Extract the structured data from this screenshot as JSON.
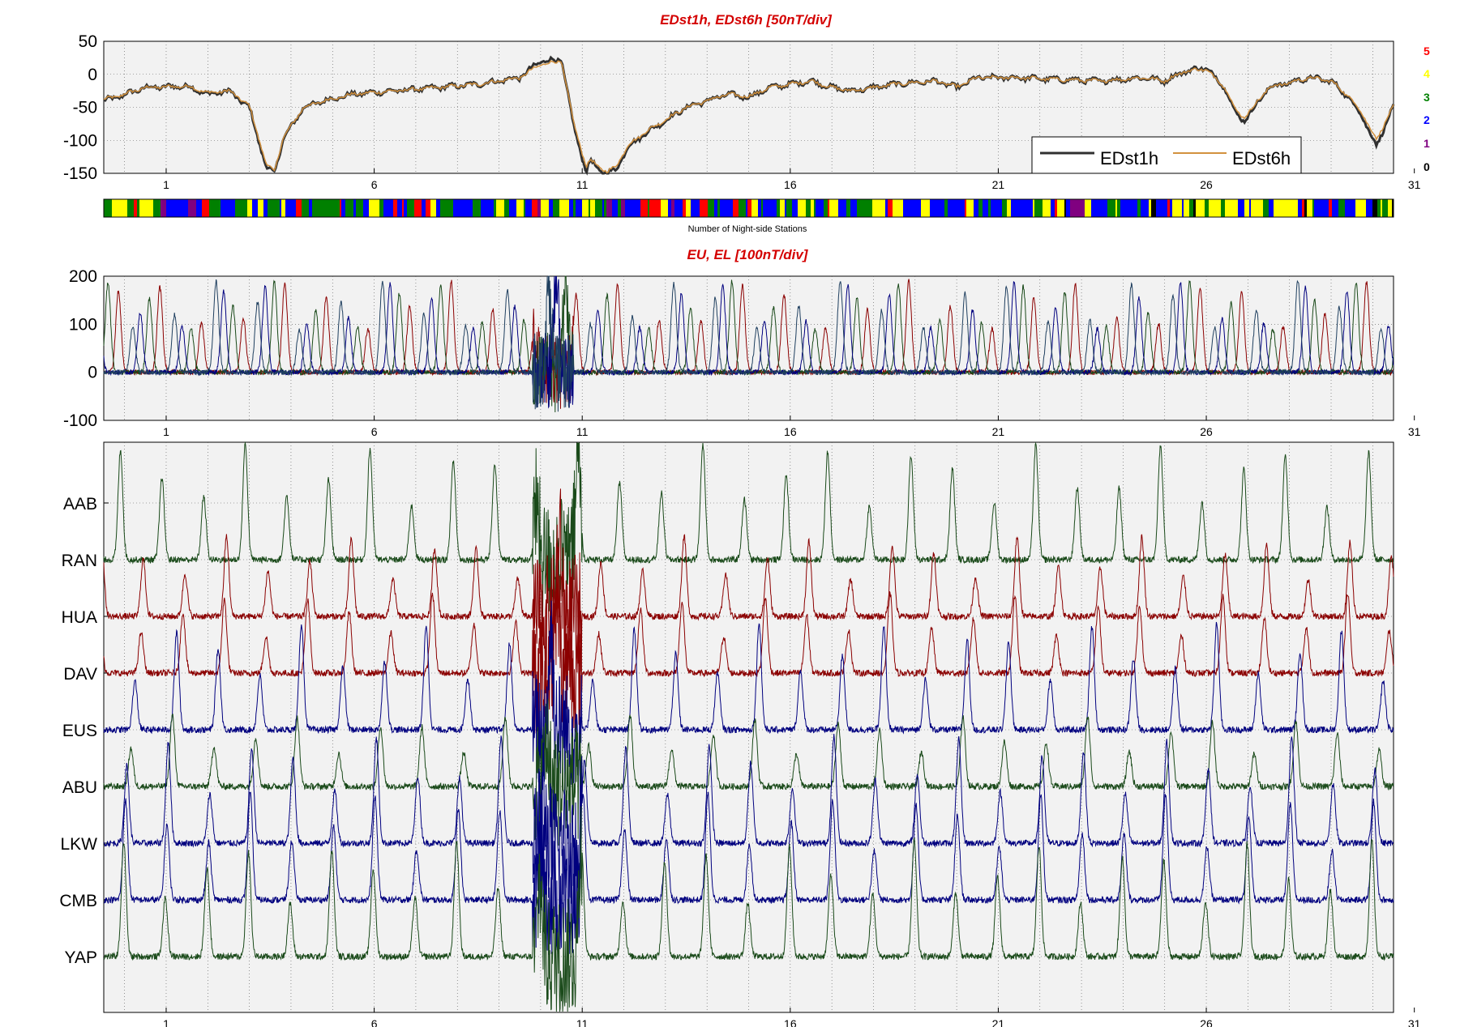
{
  "colors": {
    "panel_bg": "#f2f2f2",
    "edst1h": "#303030",
    "edst6h": "#d2913e",
    "eu_el": [
      "#8b0000",
      "#1a4a1a",
      "#00007f",
      "#1f3f5f"
    ],
    "stations": {
      "AAB": "#1a4a1a",
      "RAN": "#8b0000",
      "HUA": "#8b0000",
      "DAV": "#00007f",
      "EUS": "#1a4a1a",
      "ABU": "#00007f",
      "LKW": "#00007f",
      "CMB": "#1a4a1a",
      "YAP": "#1a4a1a"
    },
    "count_colors": {
      "5": "#ff0000",
      "4": "#ffff00",
      "3": "#008000",
      "2": "#0000ff",
      "1": "#800080",
      "0": "#000000"
    }
  },
  "chart_data": [
    {
      "type": "line",
      "title": "EDst1h, EDst6h [50nT/div]",
      "ylim": [
        -150,
        50
      ],
      "yticks": [
        "50",
        "0",
        "-50",
        "-100",
        "-150"
      ],
      "xlim": [
        0,
        31
      ],
      "xticks": [
        "1",
        "6",
        "11",
        "16",
        "21",
        "26",
        "31"
      ],
      "grid": true,
      "legend_position": "bottom-right",
      "series": [
        {
          "name": "EDst1h",
          "x": [
            0,
            0.3,
            1,
            2,
            2.5,
            3,
            3.2,
            3.5,
            3.9,
            4.1,
            4.3,
            4.8,
            5.3,
            6,
            7,
            8,
            9,
            9.5,
            10,
            10.5,
            11,
            11.3,
            11.6,
            11.7,
            11.9,
            12.1,
            12.3,
            12.6,
            13,
            14,
            14.5,
            15,
            15.5,
            16,
            16.5,
            17,
            17.5,
            18,
            19,
            20,
            20.5,
            21,
            22,
            23,
            24,
            25,
            25.5,
            26,
            26.5,
            27,
            27.2,
            27.4,
            27.6,
            28,
            29,
            29.5,
            30,
            30.3,
            30.6,
            30.9,
            31.1
          ],
          "y": [
            -40,
            -35,
            -20,
            -18,
            -30,
            -25,
            -35,
            -50,
            -140,
            -150,
            -100,
            -50,
            -40,
            -30,
            -25,
            -20,
            -15,
            -10,
            -5,
            20,
            22,
            -80,
            -148,
            -130,
            -145,
            -150,
            -145,
            -110,
            -90,
            -50,
            -40,
            -30,
            -35,
            -20,
            -15,
            -10,
            -20,
            -25,
            -15,
            -10,
            -20,
            -5,
            -5,
            -8,
            -10,
            -5,
            -10,
            5,
            10,
            -25,
            -60,
            -70,
            -55,
            -20,
            -5,
            -10,
            -40,
            -70,
            -110,
            -60,
            -40
          ]
        },
        {
          "name": "EDst6h",
          "x": [
            0,
            0.3,
            1,
            2,
            2.5,
            3,
            3.2,
            3.5,
            3.9,
            4.1,
            4.3,
            4.8,
            5.3,
            6,
            7,
            8,
            9,
            9.5,
            10,
            10.5,
            11,
            11.3,
            11.6,
            11.7,
            11.9,
            12.1,
            12.3,
            12.6,
            13,
            14,
            14.5,
            15,
            15.5,
            16,
            16.5,
            17,
            17.5,
            18,
            19,
            20,
            20.5,
            21,
            22,
            23,
            24,
            25,
            25.5,
            26,
            26.5,
            27,
            27.2,
            27.4,
            27.6,
            28,
            29,
            29.5,
            30,
            30.3,
            30.6,
            30.9,
            31.1
          ],
          "y": [
            -38,
            -34,
            -20,
            -18,
            -28,
            -25,
            -33,
            -48,
            -135,
            -148,
            -98,
            -50,
            -40,
            -30,
            -25,
            -20,
            -15,
            -10,
            -5,
            15,
            20,
            -75,
            -140,
            -130,
            -140,
            -148,
            -140,
            -108,
            -88,
            -50,
            -40,
            -30,
            -34,
            -20,
            -15,
            -10,
            -20,
            -25,
            -15,
            -10,
            -19,
            -5,
            -5,
            -8,
            -10,
            -5,
            -10,
            5,
            8,
            -24,
            -55,
            -65,
            -52,
            -20,
            -5,
            -10,
            -38,
            -65,
            -100,
            -58,
            -40
          ]
        }
      ]
    },
    {
      "type": "heatmap",
      "xlabel": "Number of Night-side Stations",
      "legend": [
        "5",
        "4",
        "3",
        "2",
        "1",
        "0"
      ]
    },
    {
      "type": "line",
      "title": "EU, EL   [100nT/div]",
      "ylim": [
        -100,
        200
      ],
      "yticks": [
        "200",
        "100",
        "0",
        "-100"
      ],
      "xlim": [
        0,
        31
      ],
      "xticks": [
        "1",
        "6",
        "11",
        "16",
        "21",
        "26",
        "31"
      ],
      "grid": true
    },
    {
      "type": "line",
      "station_labels": [
        "AAB",
        "RAN",
        "HUA",
        "DAV",
        "EUS",
        "ABU",
        "LKW",
        "CMB",
        "YAP"
      ],
      "xlim": [
        0,
        31
      ],
      "xticks": [
        "1",
        "6",
        "11",
        "16",
        "21",
        "26",
        "31"
      ],
      "grid": true
    }
  ]
}
